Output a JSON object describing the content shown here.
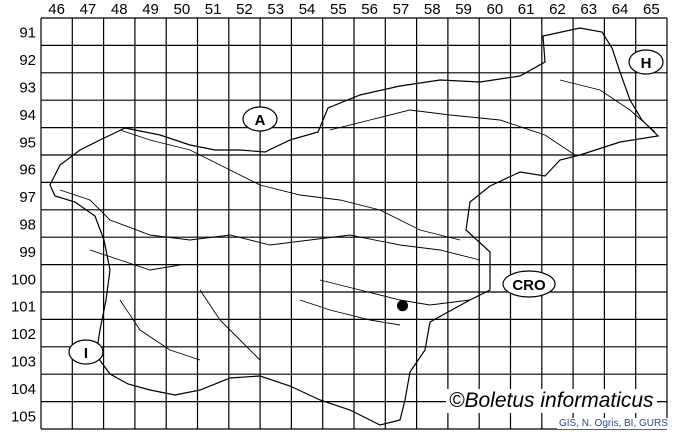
{
  "map": {
    "column_labels": [
      "46",
      "47",
      "48",
      "49",
      "50",
      "51",
      "52",
      "53",
      "54",
      "55",
      "56",
      "57",
      "58",
      "59",
      "60",
      "61",
      "62",
      "63",
      "64",
      "65"
    ],
    "row_labels": [
      "91",
      "92",
      "93",
      "94",
      "95",
      "96",
      "97",
      "98",
      "99",
      "100",
      "101",
      "102",
      "103",
      "104",
      "105"
    ],
    "neighbour_labels": [
      {
        "id": "austria",
        "text": "A"
      },
      {
        "id": "hungary",
        "text": "H"
      },
      {
        "id": "italy",
        "text": "I"
      },
      {
        "id": "croatia",
        "text": "CRO"
      }
    ],
    "occurrence_marker": {
      "column": "57",
      "row": "101"
    },
    "colors": {
      "lines": "#000000",
      "background": "#ffffff",
      "source_text": "#2a4a8a"
    }
  },
  "credit": "©Boletus informaticus",
  "source": "GIS, N. Ogris, BI, GURS"
}
